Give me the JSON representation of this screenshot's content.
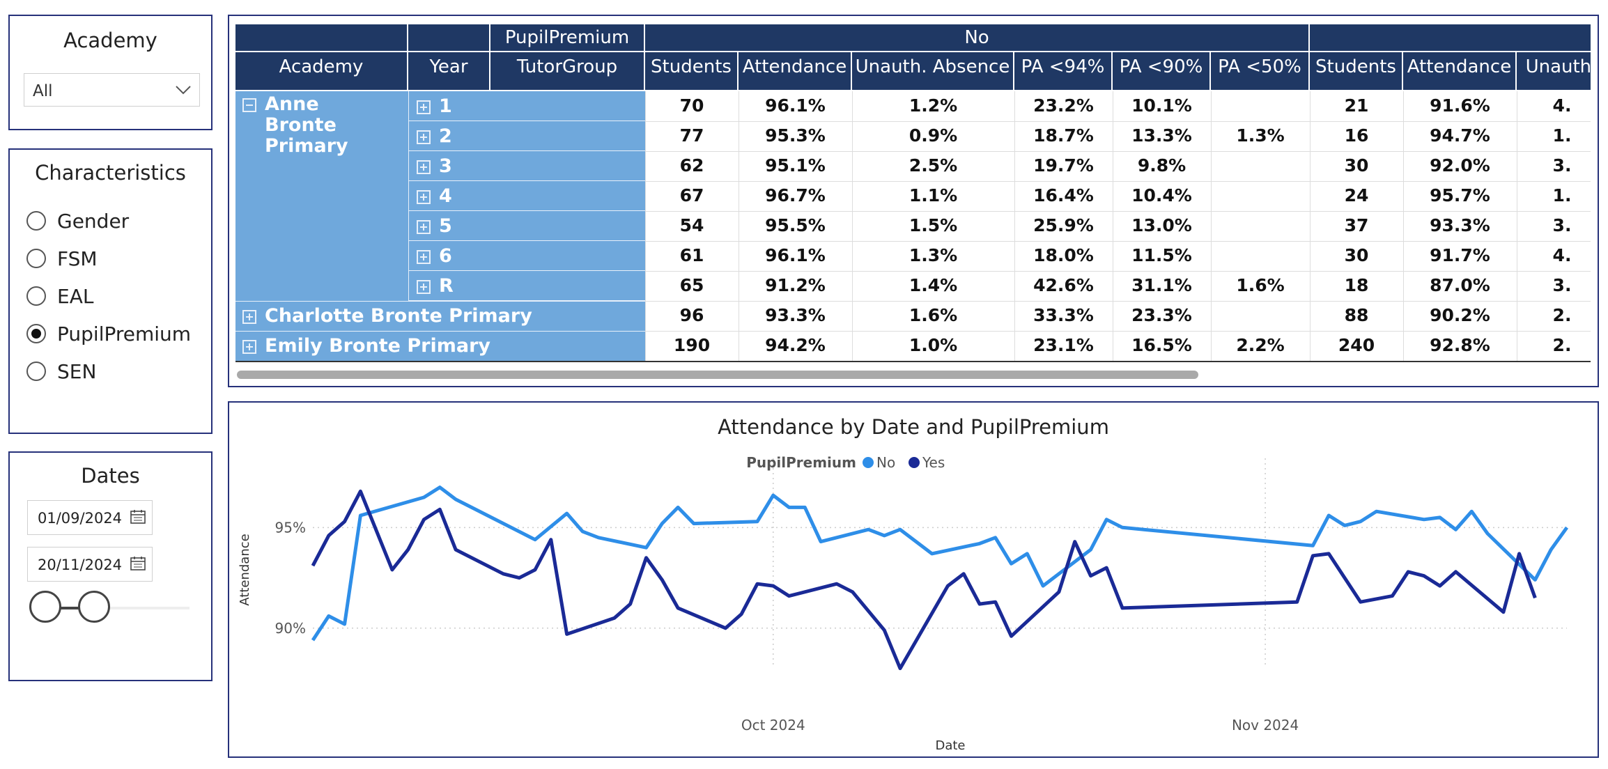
{
  "academy_slicer": {
    "title": "Academy",
    "selected": "All"
  },
  "characteristics_slicer": {
    "title": "Characteristics",
    "options": [
      {
        "label": "Gender",
        "selected": false
      },
      {
        "label": "FSM",
        "selected": false
      },
      {
        "label": "EAL",
        "selected": false
      },
      {
        "label": "PupilPremium",
        "selected": true
      },
      {
        "label": "SEN",
        "selected": false
      }
    ]
  },
  "dates_slicer": {
    "title": "Dates",
    "start": "01/09/2024",
    "end": "20/11/2024"
  },
  "table": {
    "pp_header": "PupilPremium",
    "group_no": "No",
    "columns": [
      "Academy",
      "Year",
      "TutorGroup",
      "Students",
      "Attendance",
      "Unauth. Absence",
      "PA <94%",
      "PA <90%",
      "PA <50%",
      "Students",
      "Attendance",
      "Unauth."
    ],
    "academies": [
      {
        "name": "Anne Bronte Primary",
        "expanded": true
      },
      {
        "name": "Charlotte Bronte Primary",
        "expanded": false
      },
      {
        "name": "Emily Bronte Primary",
        "expanded": false
      }
    ],
    "years": [
      "1",
      "2",
      "3",
      "4",
      "5",
      "6",
      "R"
    ],
    "rows": [
      [
        "70",
        "96.1%",
        "1.2%",
        "23.2%",
        "10.1%",
        "",
        "21",
        "91.6%",
        "4."
      ],
      [
        "77",
        "95.3%",
        "0.9%",
        "18.7%",
        "13.3%",
        "1.3%",
        "16",
        "94.7%",
        "1."
      ],
      [
        "62",
        "95.1%",
        "2.5%",
        "19.7%",
        "9.8%",
        "",
        "30",
        "92.0%",
        "3."
      ],
      [
        "67",
        "96.7%",
        "1.1%",
        "16.4%",
        "10.4%",
        "",
        "24",
        "95.7%",
        "1."
      ],
      [
        "54",
        "95.5%",
        "1.5%",
        "25.9%",
        "13.0%",
        "",
        "37",
        "93.3%",
        "3."
      ],
      [
        "61",
        "96.1%",
        "1.3%",
        "18.0%",
        "11.5%",
        "",
        "30",
        "91.7%",
        "4."
      ],
      [
        "65",
        "91.2%",
        "1.4%",
        "42.6%",
        "31.1%",
        "1.6%",
        "18",
        "87.0%",
        "3."
      ],
      [
        "96",
        "93.3%",
        "1.6%",
        "33.3%",
        "23.3%",
        "",
        "88",
        "90.2%",
        "2."
      ],
      [
        "190",
        "94.2%",
        "1.0%",
        "23.1%",
        "16.5%",
        "2.2%",
        "240",
        "92.8%",
        "2."
      ]
    ]
  },
  "chart_data": {
    "type": "line",
    "title": "Attendance by Date and PupilPremium",
    "legend_title": "PupilPremium",
    "xlabel": "Date",
    "ylabel": "Attendance",
    "x_ticks": [
      "Oct 2024",
      "Nov 2024"
    ],
    "y_ticks": [
      "90%",
      "95%"
    ],
    "ylim": [
      88.4,
      97.4
    ],
    "x_range": [
      "2024-09-02",
      "2024-11-20"
    ],
    "grid": true,
    "colors": {
      "No": "#2e8ee8",
      "Yes": "#1a2a96"
    },
    "series": [
      {
        "name": "No",
        "points": [
          [
            "2024-09-02",
            89.4
          ],
          [
            "2024-09-03",
            90.6
          ],
          [
            "2024-09-04",
            90.2
          ],
          [
            "2024-09-05",
            95.6
          ],
          [
            "2024-09-09",
            96.5
          ],
          [
            "2024-09-10",
            97.0
          ],
          [
            "2024-09-11",
            96.4
          ],
          [
            "2024-09-12",
            96.0
          ],
          [
            "2024-09-16",
            94.4
          ],
          [
            "2024-09-18",
            95.7
          ],
          [
            "2024-09-19",
            94.8
          ],
          [
            "2024-09-20",
            94.5
          ],
          [
            "2024-09-23",
            94.0
          ],
          [
            "2024-09-24",
            95.2
          ],
          [
            "2024-09-25",
            96.0
          ],
          [
            "2024-09-26",
            95.2
          ],
          [
            "2024-09-30",
            95.3
          ],
          [
            "2024-10-01",
            96.6
          ],
          [
            "2024-10-02",
            96.0
          ],
          [
            "2024-10-03",
            96.0
          ],
          [
            "2024-10-04",
            94.3
          ],
          [
            "2024-10-07",
            94.9
          ],
          [
            "2024-10-08",
            94.6
          ],
          [
            "2024-10-09",
            94.9
          ],
          [
            "2024-10-11",
            93.7
          ],
          [
            "2024-10-14",
            94.2
          ],
          [
            "2024-10-15",
            94.5
          ],
          [
            "2024-10-16",
            93.2
          ],
          [
            "2024-10-17",
            93.7
          ],
          [
            "2024-10-18",
            92.1
          ],
          [
            "2024-10-21",
            93.9
          ],
          [
            "2024-10-22",
            95.4
          ],
          [
            "2024-10-23",
            95.0
          ],
          [
            "2024-11-04",
            94.1
          ],
          [
            "2024-11-05",
            95.6
          ],
          [
            "2024-11-06",
            95.1
          ],
          [
            "2024-11-07",
            95.3
          ],
          [
            "2024-11-08",
            95.8
          ],
          [
            "2024-11-11",
            95.4
          ],
          [
            "2024-11-12",
            95.5
          ],
          [
            "2024-11-13",
            94.9
          ],
          [
            "2024-11-14",
            95.8
          ],
          [
            "2024-11-15",
            94.7
          ],
          [
            "2024-11-18",
            92.4
          ],
          [
            "2024-11-19",
            93.9
          ],
          [
            "2024-11-20",
            95.0
          ]
        ]
      },
      {
        "name": "Yes",
        "points": [
          [
            "2024-09-02",
            93.1
          ],
          [
            "2024-09-03",
            94.6
          ],
          [
            "2024-09-04",
            95.3
          ],
          [
            "2024-09-05",
            96.8
          ],
          [
            "2024-09-07",
            92.9
          ],
          [
            "2024-09-08",
            93.9
          ],
          [
            "2024-09-09",
            95.4
          ],
          [
            "2024-09-10",
            95.9
          ],
          [
            "2024-09-11",
            93.9
          ],
          [
            "2024-09-14",
            92.7
          ],
          [
            "2024-09-15",
            92.5
          ],
          [
            "2024-09-16",
            92.9
          ],
          [
            "2024-09-17",
            94.4
          ],
          [
            "2024-09-18",
            89.7
          ],
          [
            "2024-09-21",
            90.5
          ],
          [
            "2024-09-22",
            91.2
          ],
          [
            "2024-09-23",
            93.5
          ],
          [
            "2024-09-24",
            92.4
          ],
          [
            "2024-09-25",
            91.0
          ],
          [
            "2024-09-28",
            90.0
          ],
          [
            "2024-09-29",
            90.7
          ],
          [
            "2024-09-30",
            92.2
          ],
          [
            "2024-10-01",
            92.1
          ],
          [
            "2024-10-02",
            91.6
          ],
          [
            "2024-10-05",
            92.2
          ],
          [
            "2024-10-06",
            91.8
          ],
          [
            "2024-10-08",
            89.9
          ],
          [
            "2024-10-09",
            88.0
          ],
          [
            "2024-10-12",
            92.1
          ],
          [
            "2024-10-13",
            92.7
          ],
          [
            "2024-10-14",
            91.2
          ],
          [
            "2024-10-15",
            91.3
          ],
          [
            "2024-10-16",
            89.6
          ],
          [
            "2024-10-19",
            91.8
          ],
          [
            "2024-10-20",
            94.3
          ],
          [
            "2024-10-21",
            92.6
          ],
          [
            "2024-10-22",
            93.0
          ],
          [
            "2024-10-23",
            91.0
          ],
          [
            "2024-11-03",
            91.3
          ],
          [
            "2024-11-04",
            93.6
          ],
          [
            "2024-11-05",
            93.7
          ],
          [
            "2024-11-07",
            91.3
          ],
          [
            "2024-11-09",
            91.6
          ],
          [
            "2024-11-10",
            92.8
          ],
          [
            "2024-11-11",
            92.6
          ],
          [
            "2024-11-12",
            92.1
          ],
          [
            "2024-11-13",
            92.8
          ],
          [
            "2024-11-16",
            90.8
          ],
          [
            "2024-11-17",
            93.7
          ],
          [
            "2024-11-18",
            91.5
          ]
        ]
      }
    ]
  }
}
